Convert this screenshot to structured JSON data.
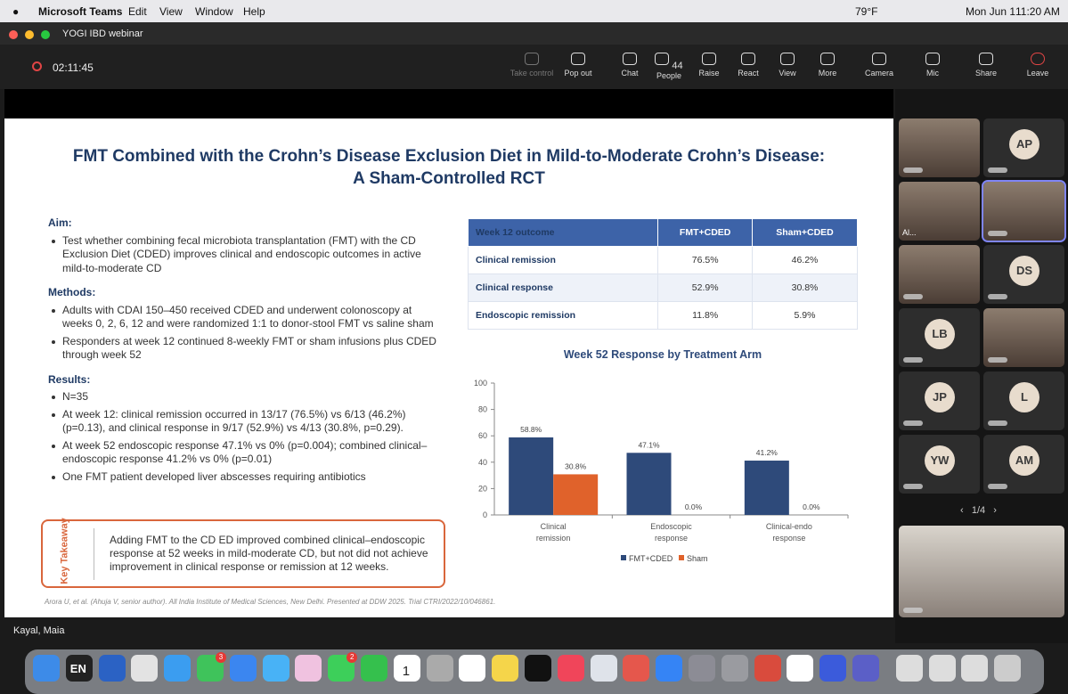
{
  "menubar": {
    "app": "Microsoft Teams",
    "menus": [
      "Edit",
      "View",
      "Window",
      "Help"
    ],
    "temperature": "79°F",
    "date": "Mon Jun 1",
    "time": "11:20 AM"
  },
  "window": {
    "title": "YOGI IBD webinar",
    "timer": "02:11:45"
  },
  "toolbar": [
    {
      "label": "Take control"
    },
    {
      "label": "Pop out"
    },
    {
      "label": "Chat"
    },
    {
      "label": "People",
      "count": "44"
    },
    {
      "label": "Raise"
    },
    {
      "label": "React"
    },
    {
      "label": "View"
    },
    {
      "label": "More"
    },
    {
      "label": "Camera"
    },
    {
      "label": "Mic"
    },
    {
      "label": "Share"
    },
    {
      "label": "Leave"
    }
  ],
  "slide": {
    "title": [
      "FMT Combined with the Crohn’s Disease Exclusion Diet in Mild-to-Moderate Crohn’s Disease:",
      "A Sham-Controlled RCT"
    ],
    "sections": [
      {
        "heading": "Aim:",
        "bullets": [
          "Test whether combining fecal microbiota transplantation (FMT) with the CD Exclusion Diet (CDED) improves clinical and endoscopic outcomes in active mild-to-moderate CD"
        ]
      },
      {
        "heading": "Methods:",
        "bullets": [
          "Adults with CDAI 150–450 received CDED and underwent colonoscopy at weeks 0, 2, 6, 12 and were randomized 1:1 to donor-stool FMT vs saline sham",
          "Responders at week 12 continued 8-weekly FMT or sham infusions plus CDED through week 52"
        ]
      },
      {
        "heading": "Results:",
        "bullets": [
          "N=35",
          "At week 12: clinical remission occurred in 13/17 (76.5%) vs 6/13 (46.2%) (p=0.13), and clinical response in 9/17 (52.9%) vs 4/13 (30.8%, p=0.29).",
          "At week 52 endoscopic response 47.1% vs 0% (p=0.004); combined clinical–endoscopic response 41.2% vs 0% (p=0.01)",
          "One FMT patient developed liver abscesses requiring antibiotics"
        ]
      }
    ],
    "table": {
      "header": [
        "Week 12 outcome",
        "FMT+CDED",
        "Sham+CDED"
      ],
      "rows": [
        [
          "Clinical remission",
          "76.5%",
          "46.2%"
        ],
        [
          "Clinical response",
          "52.9%",
          "30.8%"
        ],
        [
          "Endoscopic remission",
          "11.8%",
          "5.9%"
        ]
      ]
    },
    "takeaway": {
      "label": "Key Takeaway",
      "text": "Adding FMT to the CD ED improved combined clinical–endoscopic response at 52 weeks in mild-moderate CD, but not did not achieve improvement in clinical response or remission at 12 weeks."
    },
    "citation": "Arora U, et al. (Ahuja V, senior author). All India Institute of Medical Sciences, New Delhi. Presented at DDW 2025. Trial CTRI/2022/10/046861."
  },
  "chart_data": {
    "type": "bar",
    "title": "Week 52 Response by Treatment Arm",
    "categories": [
      "Clinical remission",
      "Endoscopic response",
      "Clinical-endo response"
    ],
    "series": [
      {
        "name": "FMT+CDED",
        "color": "#2e4a7a",
        "values": [
          58.8,
          47.1,
          41.2
        ],
        "value_labels": [
          "58.8%",
          "47.1%",
          "41.2%"
        ]
      },
      {
        "name": "Sham",
        "color": "#e0622b",
        "values": [
          30.8,
          0.0,
          0.0
        ],
        "value_labels": [
          "30.8%",
          "0.0%",
          "0.0%"
        ]
      }
    ],
    "ylim": [
      0,
      100
    ],
    "yticks": [
      0,
      20,
      40,
      60,
      80,
      100
    ],
    "grid": false,
    "legend": "bottom"
  },
  "presenter": "Kayal, Maia",
  "participants": {
    "named_video": "Al...",
    "initials": [
      "AP",
      "DS",
      "LB",
      "JP",
      "L",
      "YW",
      "AM"
    ],
    "pagination": "1/4"
  },
  "dock": {
    "input": "EN",
    "calendar_day": "1",
    "badges": [
      "3",
      "2"
    ]
  }
}
